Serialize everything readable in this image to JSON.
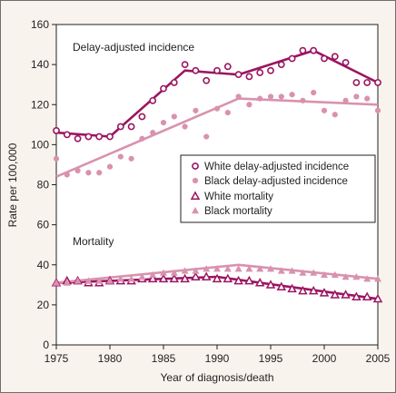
{
  "chart_data": {
    "type": "line",
    "xlabel": "Year of diagnosis/death",
    "ylabel": "Rate per 100,000",
    "xlim": [
      1975,
      2005
    ],
    "ylim": [
      0,
      160
    ],
    "x_ticks": [
      1975,
      1980,
      1985,
      1990,
      1995,
      2000,
      2005
    ],
    "y_ticks": [
      0,
      20,
      40,
      60,
      80,
      100,
      120,
      140,
      160
    ],
    "grid": false,
    "legend_position": "right",
    "annotations": [
      {
        "text": "Delay-adjusted incidence",
        "at": [
          1977,
          152
        ]
      },
      {
        "text": "Mortality",
        "at": [
          1976.5,
          61
        ]
      }
    ],
    "colors": {
      "white": "#9b1560",
      "black": "#d992ae",
      "frame": "#6d6e71"
    },
    "series": [
      {
        "name": "White delay-adjusted incidence",
        "marker": "open-circle",
        "color": "#9b1560",
        "x": [
          1975,
          1976,
          1977,
          1978,
          1979,
          1980,
          1981,
          1982,
          1983,
          1984,
          1985,
          1986,
          1987,
          1988,
          1989,
          1990,
          1991,
          1992,
          1993,
          1994,
          1995,
          1996,
          1997,
          1998,
          1999,
          2000,
          2001,
          2002,
          2003,
          2004,
          2005
        ],
        "y": [
          107,
          105,
          103,
          104,
          104,
          104,
          109,
          109,
          114,
          122,
          128,
          131,
          140,
          137,
          132,
          137,
          139,
          135,
          134,
          136,
          137,
          140,
          143,
          147,
          147,
          143,
          144,
          141,
          131,
          131,
          131
        ],
        "trend_x": [
          1975,
          1980,
          1987,
          1992,
          1999,
          2005
        ],
        "trend_y": [
          106,
          104,
          137,
          135,
          147,
          131
        ]
      },
      {
        "name": "Black delay-adjusted incidence",
        "marker": "filled-circle",
        "color": "#d992ae",
        "x": [
          1975,
          1976,
          1977,
          1978,
          1979,
          1980,
          1981,
          1982,
          1983,
          1984,
          1985,
          1986,
          1987,
          1988,
          1989,
          1990,
          1991,
          1992,
          1993,
          1994,
          1995,
          1996,
          1997,
          1998,
          1999,
          2000,
          2001,
          2002,
          2003,
          2004,
          2005
        ],
        "y": [
          93,
          85,
          87,
          86,
          86,
          89,
          94,
          93,
          103,
          106,
          111,
          114,
          109,
          117,
          104,
          118,
          116,
          124,
          120,
          123,
          124,
          124,
          125,
          122,
          126,
          117,
          115,
          122,
          124,
          123,
          117
        ],
        "trend_x": [
          1975,
          1992,
          2005
        ],
        "trend_y": [
          84,
          123,
          120
        ]
      },
      {
        "name": "White mortality",
        "marker": "open-triangle",
        "color": "#9b1560",
        "x": [
          1975,
          1976,
          1977,
          1978,
          1979,
          1980,
          1981,
          1982,
          1983,
          1984,
          1985,
          1986,
          1987,
          1988,
          1989,
          1990,
          1991,
          1992,
          1993,
          1994,
          1995,
          1996,
          1997,
          1998,
          1999,
          2000,
          2001,
          2002,
          2003,
          2004,
          2005
        ],
        "y": [
          31,
          32,
          32,
          31,
          31,
          32,
          32,
          32,
          33,
          33,
          33,
          33,
          33,
          34,
          34,
          33,
          33,
          32,
          32,
          31,
          30,
          29,
          28,
          27,
          27,
          26,
          25,
          25,
          24,
          24,
          23
        ],
        "trend_x": [
          1975,
          1990,
          2005
        ],
        "trend_y": [
          31,
          34,
          23
        ]
      },
      {
        "name": "Black mortality",
        "marker": "filled-triangle",
        "color": "#d992ae",
        "x": [
          1975,
          1976,
          1977,
          1978,
          1979,
          1980,
          1981,
          1982,
          1983,
          1984,
          1985,
          1986,
          1987,
          1988,
          1989,
          1990,
          1991,
          1992,
          1993,
          1994,
          1995,
          1996,
          1997,
          1998,
          1999,
          2000,
          2001,
          2002,
          2003,
          2004,
          2005
        ],
        "y": [
          31,
          31,
          32,
          32,
          32,
          32,
          33,
          33,
          34,
          35,
          36,
          36,
          37,
          37,
          38,
          38,
          38,
          38,
          38,
          38,
          38,
          37,
          37,
          36,
          36,
          35,
          35,
          34,
          34,
          33,
          33
        ],
        "trend_x": [
          1975,
          1992,
          2005
        ],
        "trend_y": [
          31,
          40,
          33
        ]
      }
    ]
  }
}
